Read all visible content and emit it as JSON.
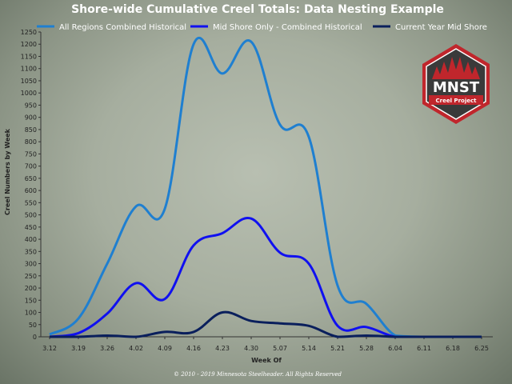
{
  "chart_data": {
    "type": "line",
    "title": "Shore-wide Cumulative Creel Totals: Data Nesting Example",
    "xlabel": "Week Of",
    "ylabel": "Creel Numbers by Week",
    "ylim": [
      0,
      1250
    ],
    "y_ticks": [
      0,
      50,
      100,
      150,
      200,
      250,
      300,
      350,
      400,
      450,
      500,
      550,
      600,
      650,
      700,
      750,
      800,
      850,
      900,
      950,
      1000,
      1050,
      1100,
      1150,
      1200,
      1250
    ],
    "categories": [
      "3.12",
      "3.19",
      "3.26",
      "4.02",
      "4.09",
      "4.16",
      "4.23",
      "4.30",
      "5.07",
      "5.14",
      "5.21",
      "5.28",
      "6.04",
      "6.11",
      "6.18",
      "6.25"
    ],
    "legend_position": "top",
    "grid": false,
    "series": [
      {
        "name": "All Regions Combined Historical",
        "color": "#1f7fd0",
        "values": [
          10,
          75,
          300,
          535,
          525,
          1200,
          1080,
          1210,
          870,
          820,
          210,
          135,
          5,
          0,
          0,
          0
        ]
      },
      {
        "name": "Mid Shore Only - Combined Historical",
        "color": "#1010f0",
        "values": [
          0,
          15,
          95,
          220,
          155,
          375,
          425,
          485,
          345,
          300,
          45,
          40,
          0,
          0,
          0,
          0
        ]
      },
      {
        "name": "Current Year Mid Shore",
        "color": "#0a1f5c",
        "values": [
          0,
          0,
          5,
          0,
          20,
          20,
          100,
          65,
          55,
          45,
          0,
          5,
          0,
          0,
          0,
          0
        ]
      }
    ]
  },
  "copyright": "© 2010 - 2019 Minnesota Steelheader. All Rights Reserved",
  "logo": {
    "main_text": "MNST",
    "sub_text": "Creel Project",
    "colors": {
      "outer": "#c0262c",
      "inner": "#3a3a3a",
      "banner": "#c0262c"
    }
  }
}
